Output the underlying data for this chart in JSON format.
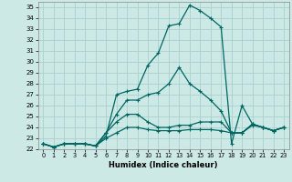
{
  "xlabel": "Humidex (Indice chaleur)",
  "xlim": [
    -0.5,
    23.5
  ],
  "ylim": [
    22,
    35.5
  ],
  "yticks": [
    22,
    23,
    24,
    25,
    26,
    27,
    28,
    29,
    30,
    31,
    32,
    33,
    34,
    35
  ],
  "xticks": [
    0,
    1,
    2,
    3,
    4,
    5,
    6,
    7,
    8,
    9,
    10,
    11,
    12,
    13,
    14,
    15,
    16,
    17,
    18,
    19,
    20,
    21,
    22,
    23
  ],
  "bg_color": "#cce9e5",
  "grid_color": "#aacfcc",
  "line_color": "#006663",
  "lines": [
    [
      22.5,
      22.2,
      22.5,
      22.5,
      22.5,
      22.3,
      23.2,
      27.0,
      27.3,
      27.5,
      29.7,
      30.8,
      33.3,
      33.5,
      35.2,
      34.7,
      34.0,
      33.2,
      22.5,
      26.0,
      24.3,
      24.0,
      23.7,
      24.0
    ],
    [
      22.5,
      22.2,
      22.5,
      22.5,
      22.5,
      22.3,
      23.5,
      25.2,
      26.5,
      26.5,
      27.0,
      27.2,
      28.0,
      29.5,
      28.0,
      27.3,
      26.5,
      25.5,
      23.5,
      23.5,
      24.3,
      24.0,
      23.7,
      24.0
    ],
    [
      22.5,
      22.2,
      22.5,
      22.5,
      22.5,
      22.3,
      23.5,
      24.5,
      25.2,
      25.2,
      24.5,
      24.0,
      24.0,
      24.2,
      24.2,
      24.5,
      24.5,
      24.5,
      23.5,
      23.5,
      24.3,
      24.0,
      23.7,
      24.0
    ],
    [
      22.5,
      22.2,
      22.5,
      22.5,
      22.5,
      22.3,
      23.0,
      23.5,
      24.0,
      24.0,
      23.8,
      23.7,
      23.7,
      23.7,
      23.8,
      23.8,
      23.8,
      23.7,
      23.5,
      23.5,
      24.2,
      24.0,
      23.7,
      24.0
    ]
  ]
}
